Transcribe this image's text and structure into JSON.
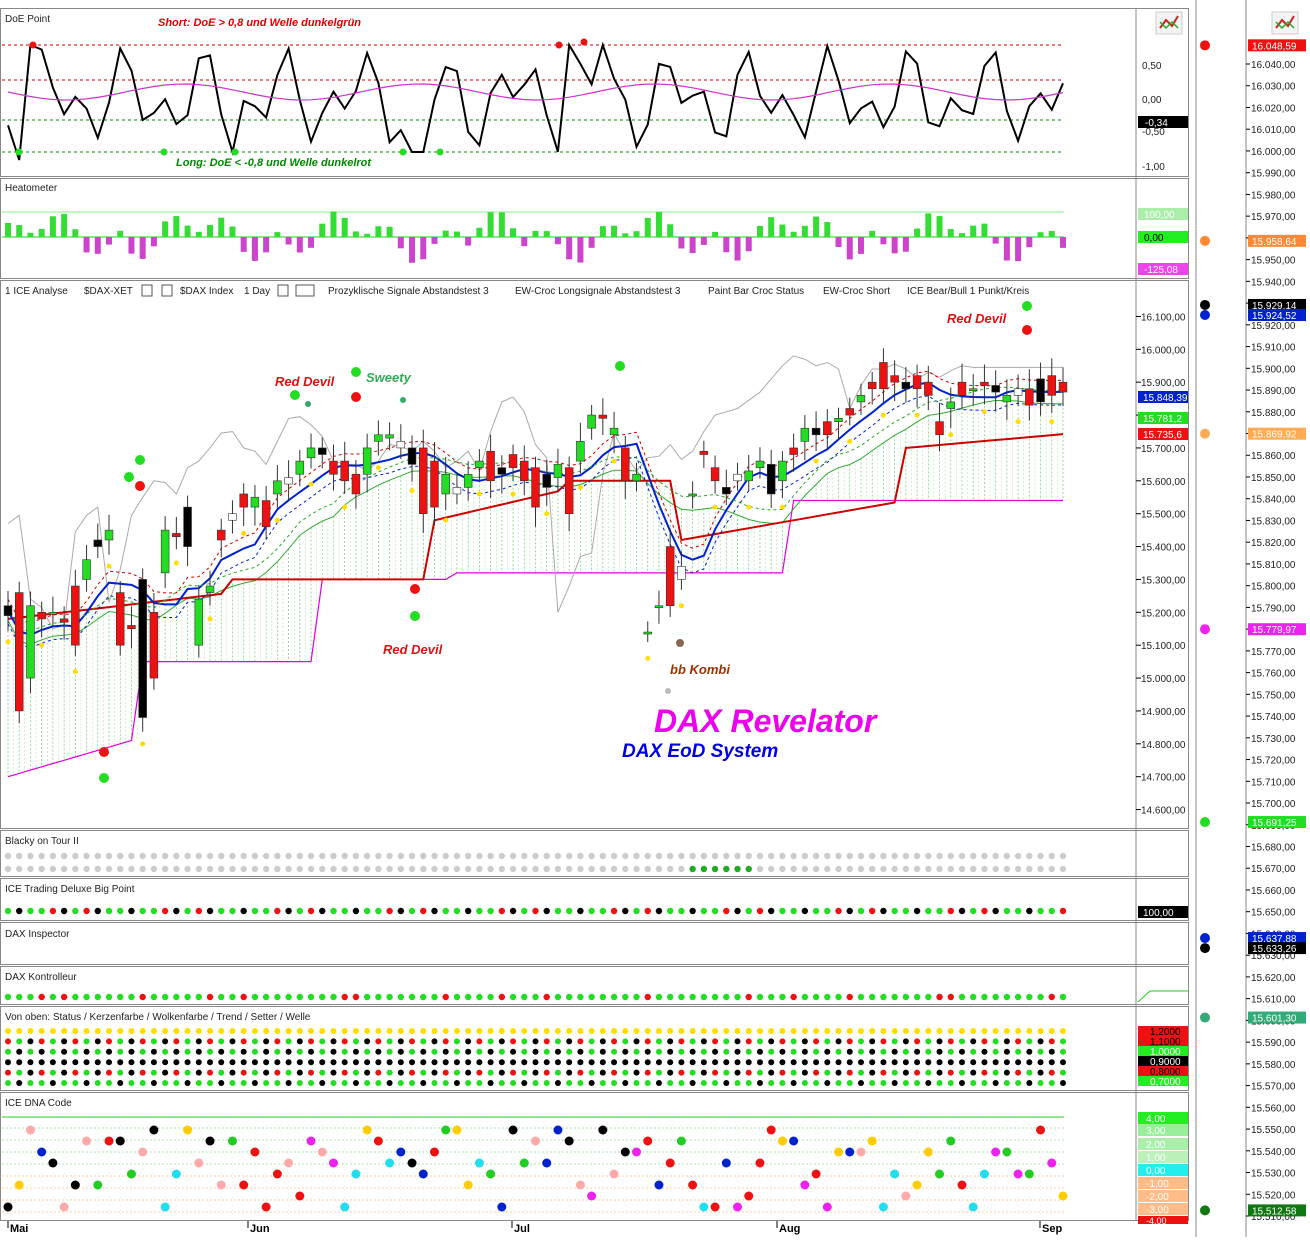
{
  "colors": {
    "green": "#22dd22",
    "red": "#ee1111",
    "black": "#000000",
    "blue": "#0022cc",
    "magenta": "#dd00dd",
    "gray": "#bbbbbb",
    "darkred": "#cc0000"
  },
  "panels": {
    "doe": {
      "title": "DoE Point",
      "note_short": "Short: DoE > 0,8 und Welle dunkelgrün",
      "note_long": "Long: DoE < -0,8 und Welle dunkelrot",
      "ticks": [
        "0,50",
        "0,00",
        "-0,50",
        "-1,00"
      ],
      "value": "-0,34"
    },
    "heat": {
      "title": "Heatometer",
      "v_pos": "100,00",
      "v_zero": "0,00",
      "v_neg": "-125,08"
    },
    "main": {
      "toolbar": [
        "1 ICE Analyse",
        "$DAX-XET",
        "$DAX Index",
        "1 Day",
        "Prozyklische Signale Abstandstest 3",
        "EW-Croc Longsignale Abstandstest 3",
        "Paint Bar Croc Status",
        "EW-Croc Short",
        "ICE Bear/Bull 1 Punkt/Kreis"
      ],
      "ticks": [
        "16.100,00",
        "16.000,00",
        "15.900,00",
        "15.800,00",
        "15.700,00",
        "15.600,00",
        "15.500,00",
        "15.400,00",
        "15.300,00",
        "15.200,00",
        "15.100,00",
        "15.000,00",
        "14.900,00",
        "14.800,00",
        "14.700,00",
        "14.600,00"
      ],
      "price_labels": [
        "15.848,39",
        "15.781,2",
        "15.735,6"
      ],
      "annotations": {
        "red_devil_1": "Red Devil",
        "sweety": "Sweety",
        "red_devil_2": "Red Devil",
        "red_devil_3": "Red Devil",
        "bb_kombi": "bb Kombi",
        "title": "DAX Revelator",
        "subtitle": "DAX EoD System"
      }
    },
    "blacky": {
      "title": "Blacky on Tour II"
    },
    "bigpoint": {
      "title": "ICE Trading Deluxe Big Point",
      "value": "100,00"
    },
    "inspector": {
      "title": "DAX Inspector"
    },
    "kontrolleur": {
      "title": "DAX Kontrolleur"
    },
    "status": {
      "title": "Von oben: Status / Kerzenfarbe / Wolkenfarbe / Trend / Setter / Welle",
      "levels": [
        "1,2000",
        "1,1000",
        "1,0000",
        "0,9000",
        "0,8000",
        "0,7000"
      ]
    },
    "dna": {
      "title": "ICE DNA Code",
      "levels": [
        "4,00",
        "3,00",
        "2,00",
        "1,00",
        "0,00",
        "-1,00",
        "-2,00",
        "-3,00",
        "-4,00"
      ]
    }
  },
  "x_axis": {
    "months": [
      "Mai",
      "Jun",
      "Jul",
      "Aug",
      "Sep"
    ]
  },
  "right_axis": {
    "ticks": [
      "16.040,00",
      "16.030,00",
      "16.020,00",
      "16.010,00",
      "16.000,00",
      "15.990,00",
      "15.980,00",
      "15.970,00",
      "15.960,00",
      "15.950,00",
      "15.940,00",
      "15.930,00",
      "15.920,00",
      "15.910,00",
      "15.900,00",
      "15.890,00",
      "15.880,00",
      "15.870,00",
      "15.860,00",
      "15.850,00",
      "15.840,00",
      "15.830,00",
      "15.820,00",
      "15.810,00",
      "15.800,00",
      "15.790,00",
      "15.780,00",
      "15.770,00",
      "15.760,00",
      "15.750,00",
      "15.740,00",
      "15.730,00",
      "15.720,00",
      "15.710,00",
      "15.700,00",
      "15.690,00",
      "15.680,00",
      "15.670,00",
      "15.660,00",
      "15.650,00",
      "15.640,00",
      "15.630,00",
      "15.620,00",
      "15.610,00",
      "15.600,00",
      "15.590,00",
      "15.580,00",
      "15.570,00",
      "15.560,00",
      "15.550,00",
      "15.540,00",
      "15.530,00",
      "15.520,00",
      "15.510,00"
    ],
    "markers": [
      {
        "value": "16.048,59",
        "color": "#ee1111",
        "dot": "#ee1111"
      },
      {
        "value": "15.958,64",
        "color": "#ff8833",
        "dot": "#ff8833"
      },
      {
        "value": "15.929,14",
        "color": "#000000",
        "dot": "#000000"
      },
      {
        "value": "15.924,52",
        "color": "#0022cc",
        "dot": "#0022cc"
      },
      {
        "value": "15.869,92",
        "color": "#ffaa55",
        "dot": "#ffaa55"
      },
      {
        "value": "15.779,97",
        "color": "#ee22ee",
        "dot": "#ee22ee"
      },
      {
        "value": "15.691,25",
        "color": "#22dd22",
        "dot": "#22dd22"
      },
      {
        "value": "15.637,88",
        "color": "#0022cc",
        "dot": "#0022cc"
      },
      {
        "value": "15.633,26",
        "color": "#000000",
        "dot": "#000000"
      },
      {
        "value": "15.601,30",
        "color": "#33aa77",
        "dot": "#33aa77"
      },
      {
        "value": "15.512,58",
        "color": "#117711",
        "dot": "#117711"
      }
    ]
  },
  "chart_data": {
    "type": "candlestick",
    "title": "DAX Revelator",
    "subtitle": "DAX EoD System",
    "ylim": [
      14550,
      16150
    ],
    "x": [
      "Mai",
      "Jun",
      "Jul",
      "Aug",
      "Sep"
    ],
    "candles": [
      [
        15220,
        15190
      ],
      [
        15260,
        14900
      ],
      [
        15000,
        15220
      ],
      [
        15200,
        15180
      ],
      [
        15200,
        15200
      ],
      [
        15180,
        15170
      ],
      [
        15280,
        15100
      ],
      [
        15300,
        15360
      ],
      [
        15420,
        15400
      ],
      [
        15420,
        15450
      ],
      [
        15260,
        15100
      ],
      [
        15160,
        15150
      ],
      [
        15300,
        14880
      ],
      [
        15200,
        15000
      ],
      [
        15320,
        15450
      ],
      [
        15440,
        15430
      ],
      [
        15520,
        15400
      ],
      [
        15100,
        15240
      ],
      [
        15260,
        15280
      ],
      [
        15450,
        15420
      ],
      [
        15480,
        15500
      ],
      [
        15560,
        15520
      ],
      [
        15520,
        15550
      ],
      [
        15540,
        15460
      ],
      [
        15560,
        15600
      ],
      [
        15590,
        15610
      ],
      [
        15620,
        15660
      ],
      [
        15670,
        15700
      ],
      [
        15700,
        15680
      ],
      [
        15660,
        15620
      ],
      [
        15660,
        15600
      ],
      [
        15620,
        15560
      ],
      [
        15620,
        15700
      ],
      [
        15720,
        15740
      ],
      [
        15730,
        15740
      ],
      [
        15700,
        15720
      ],
      [
        15700,
        15650
      ],
      [
        15700,
        15500
      ],
      [
        15660,
        15520
      ],
      [
        15560,
        15620
      ],
      [
        15560,
        15580
      ],
      [
        15580,
        15620
      ],
      [
        15640,
        15660
      ],
      [
        15690,
        15600
      ],
      [
        15640,
        15620
      ],
      [
        15680,
        15640
      ],
      [
        15660,
        15600
      ],
      [
        15640,
        15520
      ],
      [
        15620,
        15580
      ],
      [
        15610,
        15650
      ],
      [
        15640,
        15500
      ],
      [
        15660,
        15720
      ],
      [
        15760,
        15800
      ],
      [
        15800,
        15790
      ],
      [
        15740,
        15760
      ],
      [
        15700,
        15600
      ],
      [
        15600,
        15620
      ],
      [
        15140,
        15140
      ],
      [
        15220,
        15220
      ],
      [
        15400,
        15220
      ],
      [
        15300,
        15340
      ],
      [
        15560,
        15560
      ],
      [
        15690,
        15680
      ],
      [
        15640,
        15600
      ],
      [
        15580,
        15560
      ],
      [
        15600,
        15620
      ],
      [
        15600,
        15630
      ],
      [
        15640,
        15660
      ],
      [
        15650,
        15560
      ],
      [
        15600,
        15660
      ],
      [
        15700,
        15680
      ],
      [
        15720,
        15760
      ],
      [
        15760,
        15740
      ],
      [
        15780,
        15740
      ],
      [
        15780,
        15790
      ],
      [
        15820,
        15800
      ],
      [
        15840,
        15860
      ],
      [
        15900,
        15880
      ],
      [
        15960,
        15880
      ],
      [
        15920,
        15900
      ],
      [
        15900,
        15880
      ],
      [
        15920,
        15880
      ],
      [
        15900,
        15860
      ],
      [
        15780,
        15740
      ],
      [
        15820,
        15840
      ],
      [
        15900,
        15860
      ],
      [
        15880,
        15880
      ],
      [
        15900,
        15890
      ],
      [
        15890,
        15870
      ],
      [
        15840,
        15860
      ],
      [
        15860,
        15880
      ],
      [
        15880,
        15830
      ],
      [
        15910,
        15840
      ],
      [
        15920,
        15860
      ],
      [
        15900,
        15870
      ]
    ]
  }
}
